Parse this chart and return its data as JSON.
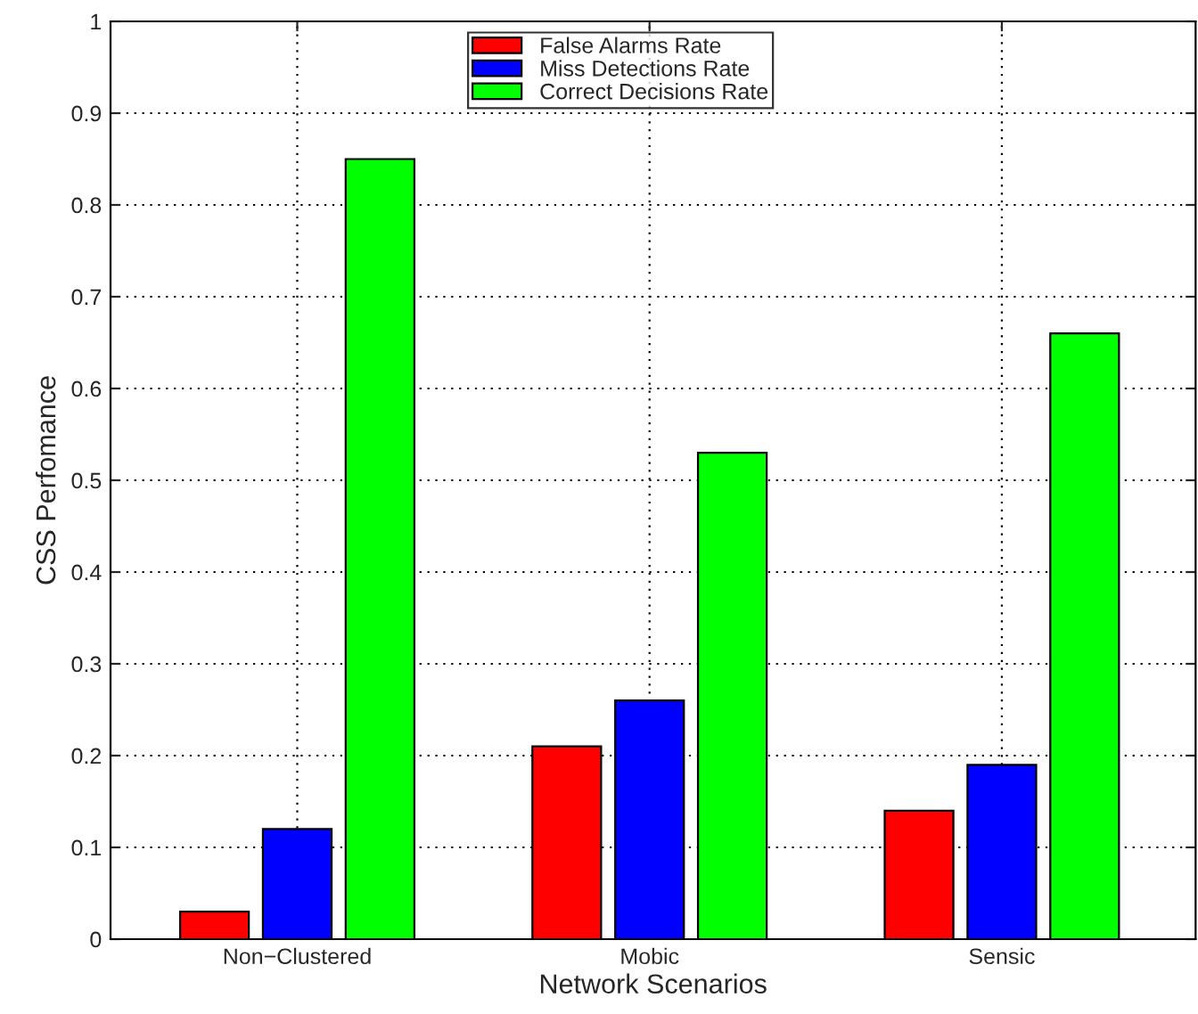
{
  "chart_data": {
    "type": "bar",
    "xlabel": "Network Scenarios",
    "ylabel": "CSS Perfomance",
    "categories": [
      "Non−Clustered",
      "Mobic",
      "Sensic"
    ],
    "series": [
      {
        "name": "False Alarms Rate",
        "color": "#ff0000",
        "values": [
          0.03,
          0.21,
          0.14
        ]
      },
      {
        "name": "Miss Detections Rate",
        "color": "#0000ff",
        "values": [
          0.12,
          0.26,
          0.19
        ]
      },
      {
        "name": "Correct Decisions Rate",
        "color": "#00ff00",
        "values": [
          0.85,
          0.53,
          0.66
        ]
      }
    ],
    "ylim": [
      0,
      1
    ],
    "yticks": [
      0,
      0.1,
      0.2,
      0.3,
      0.4,
      0.5,
      0.6,
      0.7,
      0.8,
      0.9,
      1
    ],
    "grid": true,
    "legend": "top"
  }
}
